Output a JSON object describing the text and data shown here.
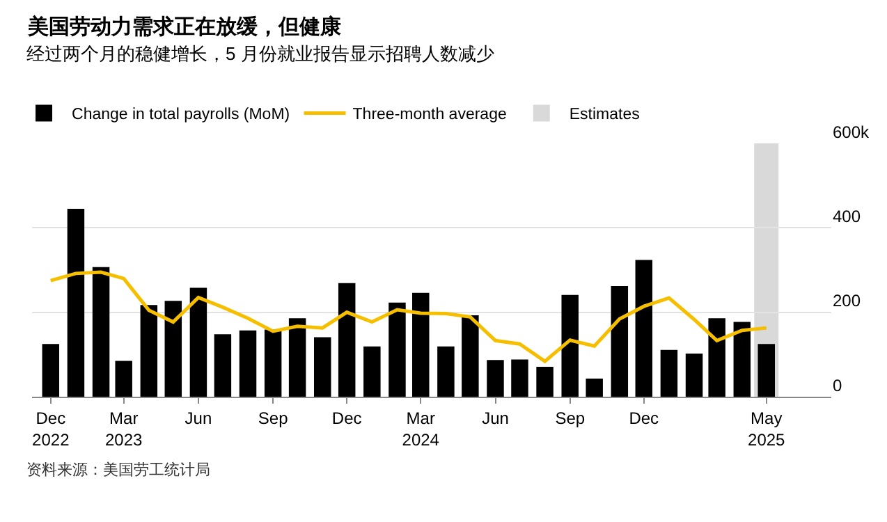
{
  "chart_data": {
    "type": "bar",
    "title": "美国劳动力需求正在放缓，但健康",
    "subtitle": "经过两个月的稳健增长，5 月份就业报告显示招聘人数减少",
    "x": [
      "2022-12",
      "2023-01",
      "2023-02",
      "2023-03",
      "2023-04",
      "2023-05",
      "2023-06",
      "2023-07",
      "2023-08",
      "2023-09",
      "2023-10",
      "2023-11",
      "2023-12",
      "2024-01",
      "2024-02",
      "2024-03",
      "2024-04",
      "2024-05",
      "2024-06",
      "2024-07",
      "2024-08",
      "2024-09",
      "2024-10",
      "2024-11",
      "2024-12",
      "2025-01",
      "2025-02",
      "2025-03",
      "2025-04",
      "2025-05"
    ],
    "series": [
      {
        "name": "Change in total payrolls (MoM)",
        "color": "#000000",
        "values": [
          125,
          445,
          307,
          85,
          217,
          227,
          258,
          148,
          157,
          159,
          186,
          141,
          269,
          119,
          223,
          246,
          119,
          193,
          87,
          88,
          71,
          241,
          43,
          262,
          324,
          111,
          102,
          186,
          177,
          125
        ]
      },
      {
        "name": "Three-month average",
        "type": "line",
        "color": "#f5bf00",
        "values": [
          275,
          292,
          295,
          280,
          205,
          177,
          235,
          212,
          186,
          155,
          167,
          163,
          200,
          177,
          206,
          198,
          197,
          189,
          133,
          125,
          84,
          134,
          120,
          184,
          214,
          234,
          183,
          133,
          157,
          163
        ]
      }
    ],
    "bands": [
      {
        "axis": "x",
        "from": "2025-04-16",
        "to": "2025-05-16",
        "label": "Estimates",
        "color": "#d9d9d9"
      }
    ],
    "xlim": [
      "2022-11-08",
      "2025-07-20"
    ],
    "xticks": [
      {
        "value": "2022-12",
        "label": "Dec\n2022"
      },
      {
        "value": "2023-03",
        "label": "Mar\n2023"
      },
      {
        "value": "2023-06",
        "label": "Jun"
      },
      {
        "value": "2023-09",
        "label": "Sep"
      },
      {
        "value": "2023-12",
        "label": "Dec"
      },
      {
        "value": "2024-03",
        "label": "Mar\n2024"
      },
      {
        "value": "2024-06",
        "label": "Jun"
      },
      {
        "value": "2024-09",
        "label": "Sep"
      },
      {
        "value": "2024-12",
        "label": "Dec"
      },
      {
        "value": "2025-05",
        "label": "May\n2025"
      }
    ],
    "ylim": [
      0,
      600
    ],
    "yticks": [
      0,
      200,
      400,
      {
        "value": 600,
        "label": "600k"
      }
    ],
    "grid": "y",
    "legend": "top left",
    "line_style": "solid",
    "marker": "none",
    "annotations": [
      "资料来源：美国劳工统计局"
    ]
  }
}
